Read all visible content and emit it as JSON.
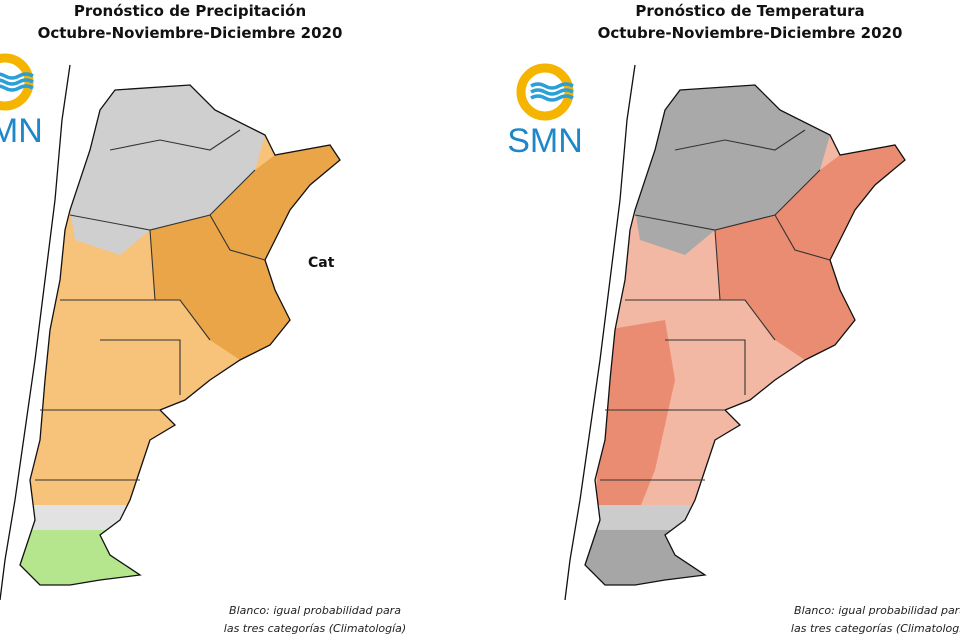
{
  "panels": [
    {
      "title": "Pronóstico de Precipitación",
      "subtitle": "Octubre-Noviembre-Diciembre 2020",
      "logo": "SMN",
      "map_label": "Cat",
      "note": [
        "Blanco: igual probabilidad para",
        "las tres categorías (Climatología)"
      ]
    },
    {
      "title": "Pronóstico de Temperatura",
      "subtitle": "Octubre-Noviembre-Diciembre 2020",
      "logo": "SMN",
      "note": [
        "Blanco: igual probabilidad para",
        "las tres categorías (Climatología"
      ]
    }
  ]
}
